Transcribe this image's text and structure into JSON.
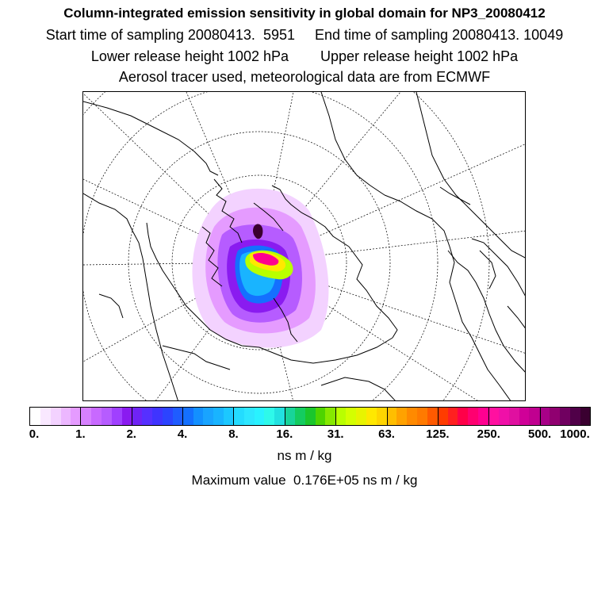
{
  "header": {
    "title": "Column-integrated emission sensitivity in global domain for NP3_20080412",
    "sampling_line": "Start time of sampling 20080413.  5951     End time of sampling 20080413. 10049",
    "release_line": "Lower release height 1002 hPa        Upper release height 1002 hPa",
    "tracer_line": "Aerosol tracer used, meteorological data are from ECMWF"
  },
  "map": {
    "projection": "polar-stereographic",
    "plume_colors": [
      "#f3d2ff",
      "#e59bff",
      "#b65cff",
      "#8a1bf0",
      "#3f34ff",
      "#1470ff",
      "#19b4ff",
      "#2de7ff",
      "#22e1e0",
      "#b9ff00",
      "#ffe800",
      "#ff7a00",
      "#ff0090",
      "#3a0030"
    ]
  },
  "colorbar": {
    "colors": [
      "#ffffff",
      "#f9e8ff",
      "#f3d2ff",
      "#ecb7ff",
      "#e59bff",
      "#d781ff",
      "#c869ff",
      "#b65cff",
      "#a040ff",
      "#8a1bf0",
      "#6f23f5",
      "#5630ff",
      "#3f34ff",
      "#2c44ff",
      "#1f5cff",
      "#1470ff",
      "#1390ff",
      "#19a4ff",
      "#19b4ff",
      "#1cc8ff",
      "#24dcff",
      "#2de7ff",
      "#29f2ff",
      "#2ef9ea",
      "#22e1e0",
      "#18d49a",
      "#14cc60",
      "#1ac62c",
      "#4ed400",
      "#86e800",
      "#b9ff00",
      "#d4ff00",
      "#e8f400",
      "#ffe800",
      "#ffd500",
      "#ffbe00",
      "#ffa200",
      "#ff8a00",
      "#ff7a00",
      "#ff5a00",
      "#ff3c00",
      "#ff2020",
      "#ff0048",
      "#ff0070",
      "#ff0090",
      "#ff10a0",
      "#f010a8",
      "#e010a0",
      "#d00098",
      "#c00090",
      "#a80088",
      "#900070",
      "#700060",
      "#500048",
      "#3a0030"
    ],
    "tick_labels": [
      "0.",
      "1.",
      "2.",
      "4.",
      "8.",
      "16.",
      "31.",
      "63.",
      "125.",
      "250.",
      "500.",
      "1000."
    ],
    "units": "ns m / kg"
  },
  "footer": {
    "max_value_text": "Maximum value  0.176E+05 ns m / kg"
  }
}
